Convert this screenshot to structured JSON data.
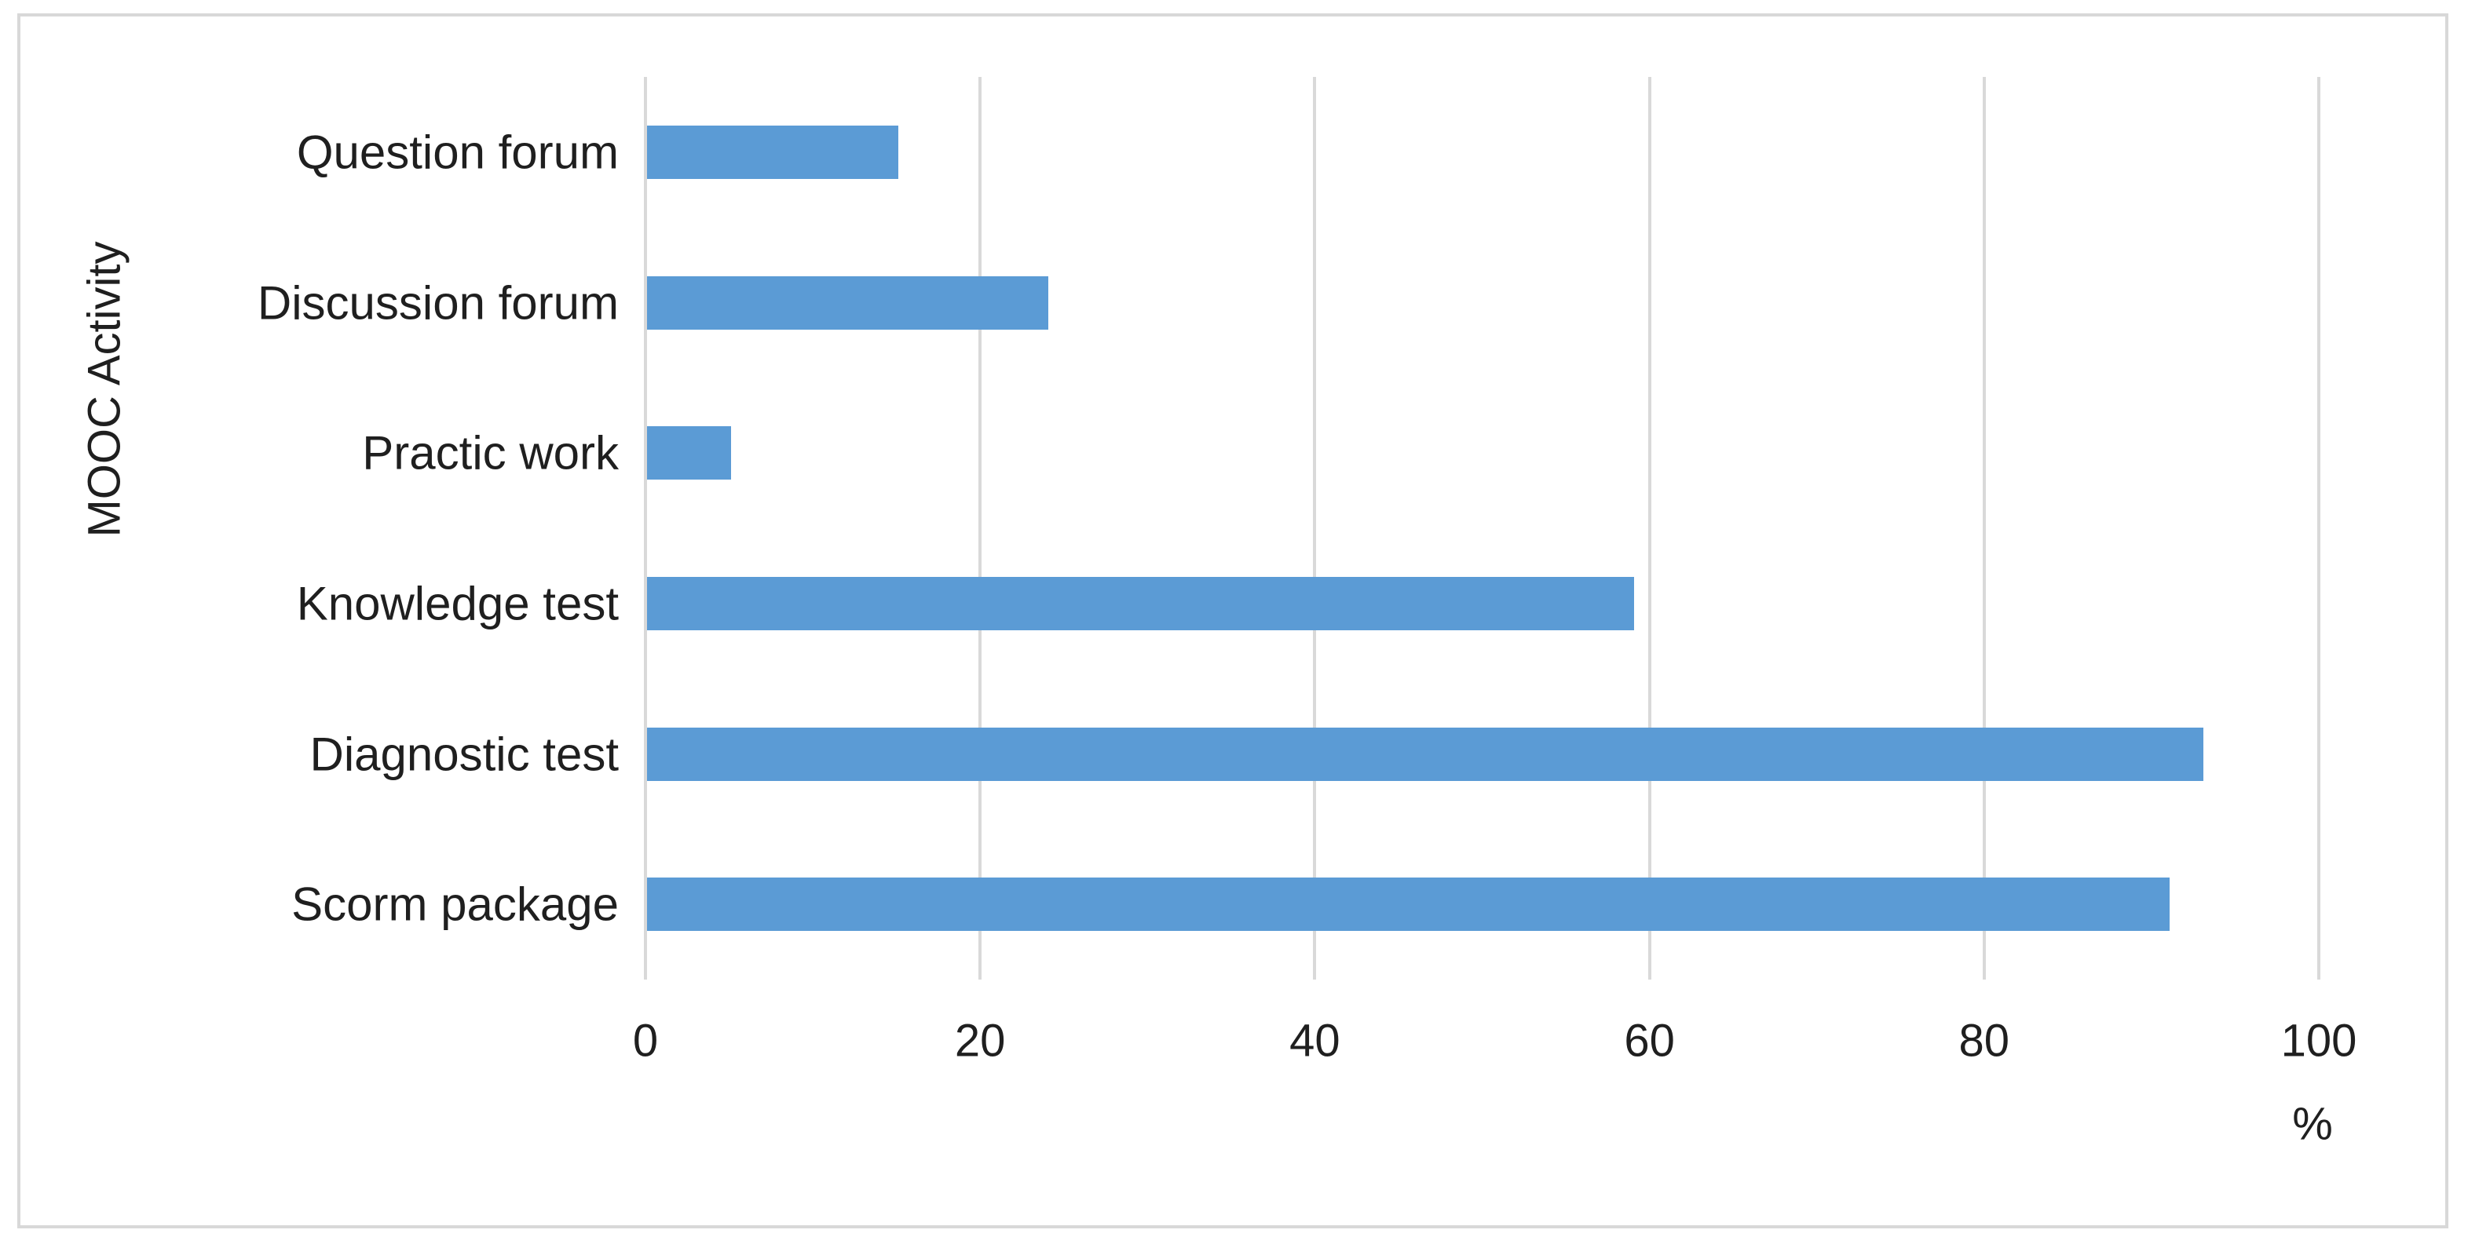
{
  "chart_data": {
    "type": "bar",
    "orientation": "horizontal",
    "categories": [
      "Question forum",
      "Discussion forum",
      "Practic work",
      "Knowledge test",
      "Diagnostic test",
      "Scorm package"
    ],
    "values": [
      15,
      24,
      5,
      59,
      93,
      91
    ],
    "title": "",
    "xlabel": "%",
    "ylabel": "MOOC Activity",
    "xlim": [
      0,
      100
    ],
    "xticks": [
      0,
      20,
      40,
      60,
      80,
      100
    ],
    "grid": true,
    "legend": false,
    "colors": {
      "bar": "#5B9BD5",
      "gridline": "#D9D9D9",
      "text": "#1F1F1F",
      "frame_border": "#D8D8D8",
      "background": "#FFFFFF"
    }
  }
}
